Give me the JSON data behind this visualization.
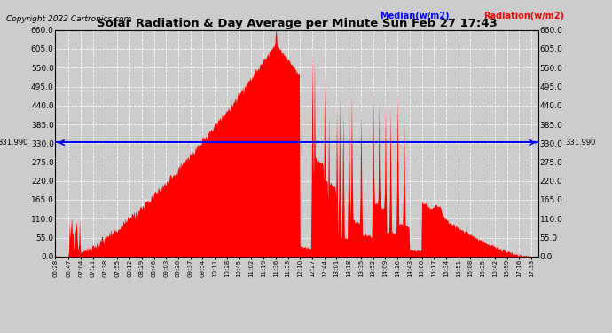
{
  "title": "Solar Radiation & Day Average per Minute Sun Feb 27 17:43",
  "copyright": "Copyright 2022 Cartronics.com",
  "median_value": 331.99,
  "median_label": "331.990",
  "legend_median": "Median(w/m2)",
  "legend_radiation": "Radiation(w/m2)",
  "y_min": 0.0,
  "y_max": 660.0,
  "y_ticks": [
    0.0,
    55.0,
    110.0,
    165.0,
    220.0,
    275.0,
    330.0,
    385.0,
    440.0,
    495.0,
    550.0,
    605.0,
    660.0
  ],
  "background_color": "#cccccc",
  "plot_bg_color": "#cccccc",
  "fill_color": "#ff0000",
  "median_line_color": "#0000ff",
  "grid_color": "#ffffff",
  "title_color": "#000000",
  "x_labels": [
    "06:28",
    "06:47",
    "07:04",
    "07:21",
    "07:38",
    "07:55",
    "08:12",
    "08:29",
    "08:46",
    "09:03",
    "09:20",
    "09:37",
    "09:54",
    "10:11",
    "10:28",
    "10:45",
    "11:02",
    "11:19",
    "11:36",
    "11:53",
    "12:10",
    "12:27",
    "12:44",
    "13:01",
    "13:18",
    "13:35",
    "13:52",
    "14:09",
    "14:26",
    "14:43",
    "15:00",
    "15:17",
    "15:34",
    "15:51",
    "16:08",
    "16:25",
    "16:42",
    "16:59",
    "17:16",
    "17:33"
  ]
}
